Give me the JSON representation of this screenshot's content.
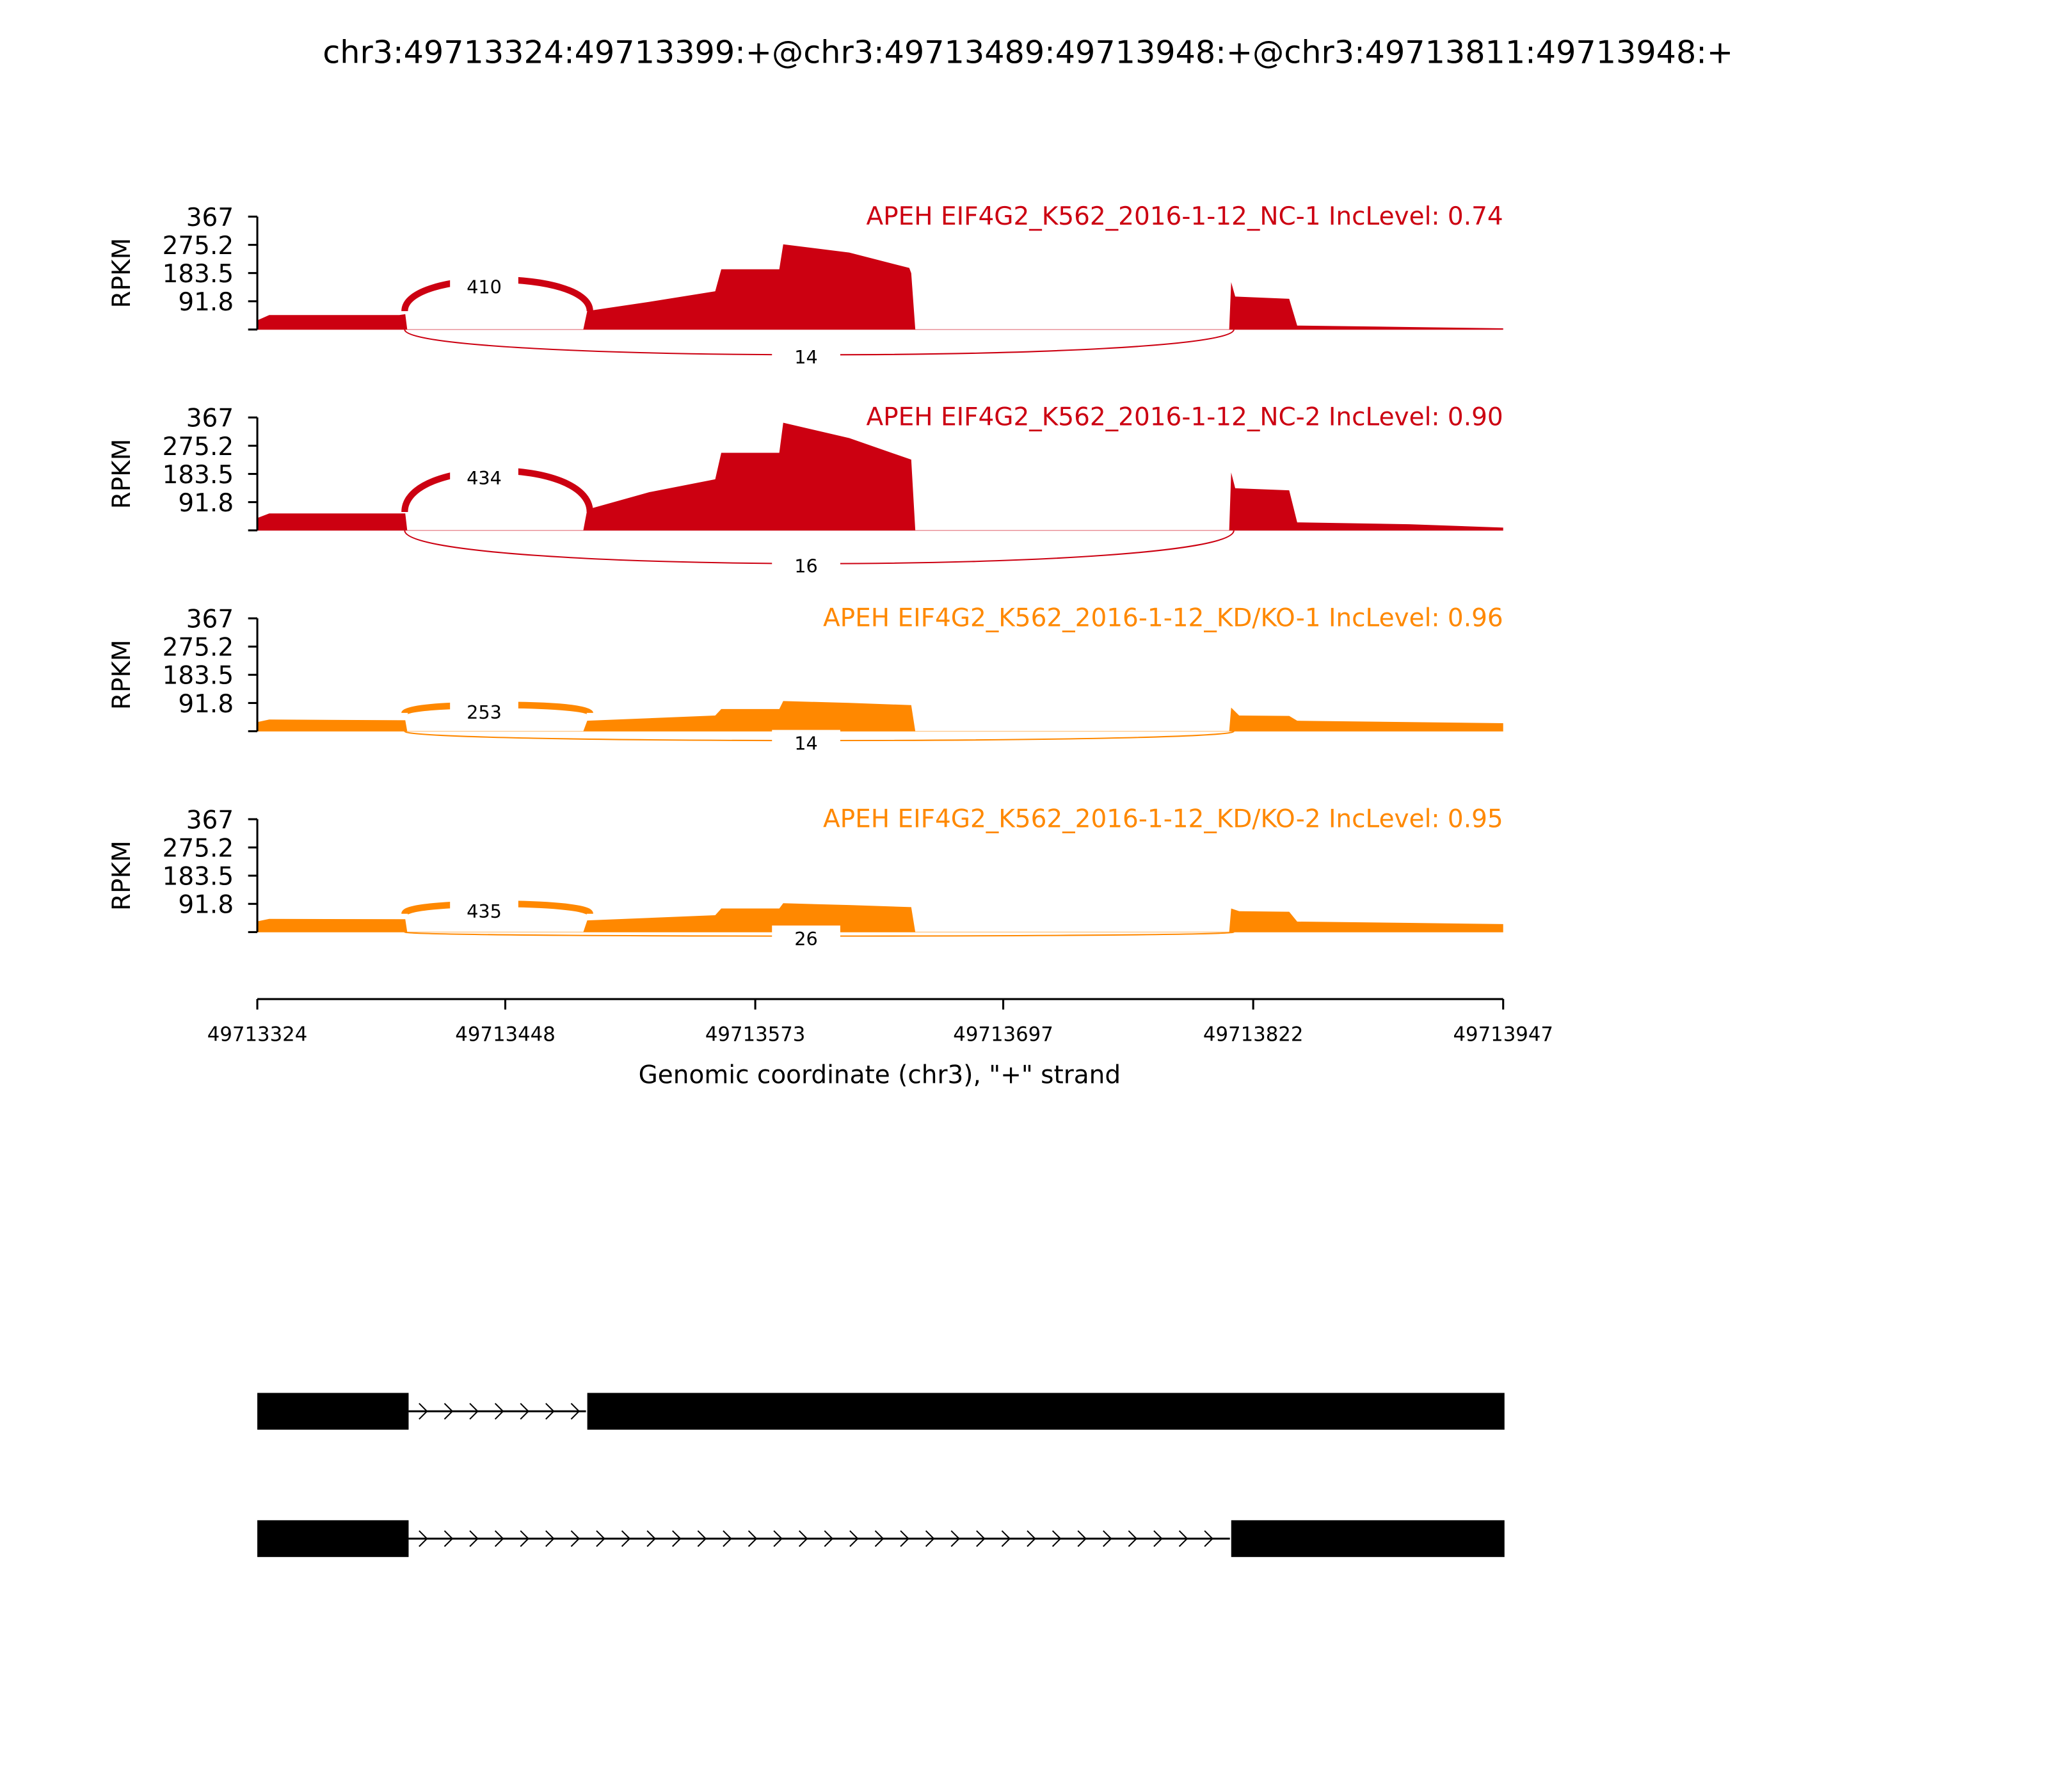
{
  "chart_data": {
    "type": "area",
    "title": "chr3:49713324:49713399:+@chr3:49713489:49713948:+@chr3:49713811:49713948:+",
    "xlabel": "Genomic coordinate (chr3), \"+\" strand",
    "ylabel": "RPKM",
    "xlim": [
      49713324,
      49713947
    ],
    "ylim": [
      0,
      367
    ],
    "x_ticks": [
      "49713324",
      "49713448",
      "49713573",
      "49713697",
      "49713822",
      "49713947"
    ],
    "x_tick_values": [
      49713324,
      49713448,
      49713573,
      49713697,
      49713822,
      49713947
    ],
    "y_ticks": [
      "367",
      "275.2",
      "183.5",
      "91.8"
    ],
    "y_tick_values": [
      367,
      275.2,
      183.5,
      91.8
    ],
    "junctions": [
      {
        "start": 49713399,
        "end": 49713489,
        "side": "above"
      },
      {
        "start": 49713399,
        "end": 49713811,
        "side": "below"
      }
    ],
    "series": [
      {
        "name": "APEH EIF4G2_K562_2016-1-12_NC-1 IncLevel: 0.74",
        "color": "#cc0011",
        "junction_counts": [
          "410",
          "14"
        ],
        "coverage": [
          [
            49713324,
            30
          ],
          [
            49713330,
            47
          ],
          [
            49713395,
            47
          ],
          [
            49713398,
            50
          ],
          [
            49713399,
            0
          ],
          [
            49713487,
            0
          ],
          [
            49713489,
            60
          ],
          [
            49713520,
            90
          ],
          [
            49713553,
            124
          ],
          [
            49713556,
            196
          ],
          [
            49713585,
            196
          ],
          [
            49713587,
            277
          ],
          [
            49713620,
            250
          ],
          [
            49713650,
            200
          ],
          [
            49713651,
            183
          ],
          [
            49713653,
            0
          ],
          [
            49713810,
            0
          ],
          [
            49713811,
            154
          ],
          [
            49713813,
            107
          ],
          [
            49713840,
            100
          ],
          [
            49713844,
            13
          ],
          [
            49713900,
            8
          ],
          [
            49713947,
            4
          ]
        ]
      },
      {
        "name": "APEH EIF4G2_K562_2016-1-12_NC-2 IncLevel: 0.90",
        "color": "#cc0011",
        "junction_counts": [
          "434",
          "16"
        ],
        "coverage": [
          [
            49713324,
            40
          ],
          [
            49713330,
            55
          ],
          [
            49713398,
            55
          ],
          [
            49713399,
            0
          ],
          [
            49713487,
            0
          ],
          [
            49713489,
            68
          ],
          [
            49713520,
            124
          ],
          [
            49713553,
            166
          ],
          [
            49713556,
            252
          ],
          [
            49713585,
            252
          ],
          [
            49713587,
            350
          ],
          [
            49713620,
            300
          ],
          [
            49713651,
            230
          ],
          [
            49713653,
            0
          ],
          [
            49713810,
            0
          ],
          [
            49713811,
            188
          ],
          [
            49713813,
            137
          ],
          [
            49713840,
            130
          ],
          [
            49713844,
            26
          ],
          [
            49713900,
            20
          ],
          [
            49713947,
            9
          ]
        ]
      },
      {
        "name": "APEH EIF4G2_K562_2016-1-12_KD/KO-1 IncLevel: 0.96",
        "color": "#ff8800",
        "junction_counts": [
          "253",
          "14"
        ],
        "coverage": [
          [
            49713324,
            30
          ],
          [
            49713330,
            38
          ],
          [
            49713398,
            36
          ],
          [
            49713399,
            0
          ],
          [
            49713487,
            0
          ],
          [
            49713489,
            34
          ],
          [
            49713553,
            51
          ],
          [
            49713556,
            72
          ],
          [
            49713585,
            72
          ],
          [
            49713587,
            98
          ],
          [
            49713620,
            92
          ],
          [
            49713651,
            85
          ],
          [
            49713653,
            0
          ],
          [
            49713810,
            0
          ],
          [
            49713811,
            77
          ],
          [
            49713815,
            51
          ],
          [
            49713840,
            50
          ],
          [
            49713844,
            34
          ],
          [
            49713900,
            30
          ],
          [
            49713947,
            26
          ]
        ]
      },
      {
        "name": "APEH EIF4G2_K562_2016-1-12_KD/KO-2 IncLevel: 0.95",
        "color": "#ff8800",
        "junction_counts": [
          "435",
          "26"
        ],
        "coverage": [
          [
            49713324,
            35
          ],
          [
            49713330,
            43
          ],
          [
            49713398,
            42
          ],
          [
            49713399,
            0
          ],
          [
            49713487,
            0
          ],
          [
            49713489,
            38
          ],
          [
            49713553,
            55
          ],
          [
            49713556,
            77
          ],
          [
            49713585,
            77
          ],
          [
            49713587,
            94
          ],
          [
            49713620,
            88
          ],
          [
            49713651,
            81
          ],
          [
            49713653,
            0
          ],
          [
            49713810,
            0
          ],
          [
            49713811,
            77
          ],
          [
            49713815,
            68
          ],
          [
            49713840,
            66
          ],
          [
            49713844,
            34
          ],
          [
            49713900,
            30
          ],
          [
            49713947,
            26
          ]
        ]
      }
    ],
    "transcripts": [
      {
        "exons": [
          [
            49713324,
            49713399
          ],
          [
            49713489,
            49713948
          ]
        ]
      },
      {
        "exons": [
          [
            49713324,
            49713399
          ],
          [
            49713811,
            49713948
          ]
        ]
      }
    ],
    "grid": false,
    "legend": "panel titles top-right"
  }
}
